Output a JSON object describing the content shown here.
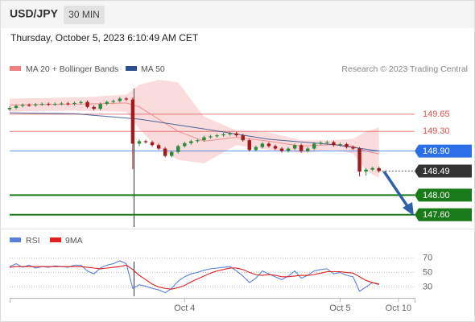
{
  "header": {
    "symbol": "USD/JPY",
    "interval": "30 MIN",
    "timestamp": "Thursday, October 5, 2023 6:10:49 AM CET"
  },
  "chart_data": [
    {
      "type": "candlestick",
      "source": "Research © 2023 Trading Central",
      "xlim": [
        0,
        125
      ],
      "ylim": [
        147.35,
        150.42
      ],
      "up_color": "#2e8b3a",
      "down_color": "#a01c1c",
      "x": [
        0,
        2,
        4,
        6,
        8,
        10,
        12,
        14,
        16,
        18,
        20,
        22,
        24,
        26,
        28,
        30,
        32,
        34,
        36,
        38,
        40,
        42,
        44,
        46,
        48,
        50,
        52,
        54,
        56,
        58,
        60,
        62,
        64,
        66,
        68,
        70,
        72,
        74,
        76,
        78,
        80,
        82,
        84,
        86,
        88,
        90,
        92,
        94,
        96,
        98,
        100,
        102,
        104,
        106,
        108,
        110,
        112,
        114
      ],
      "open": [
        149.75,
        149.78,
        149.82,
        149.84,
        149.83,
        149.85,
        149.86,
        149.85,
        149.86,
        149.87,
        149.86,
        149.88,
        149.9,
        149.8,
        149.76,
        149.86,
        149.9,
        149.92,
        149.97,
        149.95,
        149.05,
        149.1,
        149.08,
        149.02,
        148.95,
        148.8,
        148.88,
        149.0,
        149.06,
        149.1,
        149.12,
        149.18,
        149.2,
        149.22,
        149.24,
        149.26,
        149.22,
        149.12,
        148.92,
        148.98,
        149.05,
        149.0,
        148.95,
        148.9,
        148.95,
        149.02,
        148.9,
        148.95,
        149.05,
        149.07,
        149.08,
        149.02,
        149.04,
        148.98,
        148.95,
        148.48,
        148.52,
        148.55
      ],
      "high": [
        149.81,
        149.85,
        149.87,
        149.87,
        149.88,
        149.89,
        149.89,
        149.89,
        149.9,
        149.9,
        149.91,
        149.93,
        149.93,
        149.83,
        149.89,
        149.93,
        149.95,
        150.0,
        150.0,
        149.99,
        149.14,
        149.13,
        149.11,
        149.05,
        148.98,
        148.91,
        149.03,
        149.09,
        149.13,
        149.15,
        149.21,
        149.23,
        149.25,
        149.27,
        149.29,
        149.29,
        149.25,
        149.15,
        149.01,
        149.08,
        149.08,
        149.03,
        148.98,
        148.98,
        149.05,
        149.05,
        148.98,
        149.08,
        149.1,
        149.11,
        149.11,
        149.07,
        149.07,
        149.01,
        148.98,
        148.55,
        148.58,
        148.58
      ],
      "low": [
        149.72,
        149.75,
        149.79,
        149.8,
        149.8,
        149.82,
        149.82,
        149.82,
        149.83,
        149.83,
        149.83,
        149.85,
        149.77,
        149.73,
        149.73,
        149.83,
        149.87,
        149.89,
        149.92,
        148.53,
        149.0,
        149.05,
        148.99,
        148.92,
        148.77,
        148.77,
        148.85,
        148.97,
        149.03,
        149.07,
        149.09,
        149.15,
        149.17,
        149.19,
        149.21,
        149.19,
        149.09,
        148.89,
        148.89,
        148.95,
        148.97,
        148.92,
        148.87,
        148.87,
        148.92,
        148.87,
        148.87,
        148.92,
        149.02,
        149.04,
        148.99,
        148.99,
        148.95,
        148.92,
        148.38,
        148.4,
        148.49,
        148.46
      ],
      "close": [
        149.78,
        149.82,
        149.84,
        149.83,
        149.85,
        149.86,
        149.85,
        149.86,
        149.87,
        149.86,
        149.88,
        149.9,
        149.8,
        149.76,
        149.86,
        149.9,
        149.92,
        149.97,
        149.95,
        149.05,
        149.1,
        149.08,
        149.02,
        148.95,
        148.8,
        148.88,
        149.0,
        149.06,
        149.1,
        149.12,
        149.18,
        149.2,
        149.22,
        149.24,
        149.26,
        149.22,
        149.12,
        148.92,
        148.98,
        149.05,
        149.0,
        148.95,
        148.9,
        148.95,
        149.02,
        148.9,
        148.95,
        149.05,
        149.07,
        149.08,
        149.02,
        149.04,
        148.98,
        148.95,
        148.48,
        148.52,
        148.55,
        148.49
      ],
      "series": [
        {
          "name": "MA 20 + Bollinger Bands",
          "color": "#f08080",
          "x": [
            0,
            12,
            24,
            36,
            40,
            46,
            52,
            60,
            70,
            80,
            90,
            100,
            106,
            110,
            114
          ],
          "values": [
            149.84,
            149.85,
            149.86,
            149.88,
            149.8,
            149.55,
            149.3,
            149.1,
            149.18,
            149.1,
            149.0,
            149.03,
            149.0,
            148.9,
            148.84
          ],
          "upper": [
            149.97,
            149.98,
            150.0,
            150.05,
            150.25,
            150.35,
            150.3,
            149.6,
            149.32,
            149.28,
            149.12,
            149.12,
            149.15,
            149.3,
            149.38
          ],
          "lower": [
            149.7,
            149.72,
            149.72,
            149.7,
            149.35,
            148.95,
            148.72,
            148.65,
            149.02,
            148.92,
            148.86,
            148.92,
            148.85,
            148.5,
            148.35
          ]
        },
        {
          "name": "MA 50",
          "color": "#2f4f8f",
          "x": [
            0,
            20,
            40,
            60,
            80,
            100,
            114
          ],
          "values": [
            149.68,
            149.66,
            149.55,
            149.35,
            149.14,
            149.03,
            148.9
          ]
        }
      ],
      "levels": [
        {
          "value": 149.65,
          "label": "149.65",
          "color": "#e05050",
          "style": "line",
          "label_style": "text"
        },
        {
          "value": 149.3,
          "label": "149.30",
          "color": "#e05050",
          "style": "line",
          "label_style": "text"
        },
        {
          "value": 148.9,
          "label": "148.90",
          "color": "#2a6ee8",
          "style": "line",
          "label_style": "box"
        },
        {
          "value": 148.49,
          "label": "148.49",
          "color": "#333333",
          "style": "dotted",
          "label_style": "box"
        },
        {
          "value": 148,
          "label": "148.00",
          "color": "#1a7a1a",
          "style": "thick",
          "label_style": "box"
        },
        {
          "value": 147.6,
          "label": "147.60",
          "color": "#1a7a1a",
          "style": "thick",
          "label_style": "box"
        }
      ]
    },
    {
      "type": "line",
      "xlim": [
        0,
        125
      ],
      "ylim": [
        15,
        87
      ],
      "yticks": [
        30,
        50,
        70
      ],
      "xticks": [
        {
          "value": 54,
          "label": "Oct 4"
        },
        {
          "value": 102,
          "label": "Oct 5"
        },
        {
          "value": 120,
          "label": "Oct 10"
        }
      ],
      "x": [
        0,
        2,
        4,
        6,
        8,
        10,
        12,
        14,
        16,
        18,
        20,
        22,
        24,
        26,
        28,
        30,
        32,
        34,
        36,
        38,
        40,
        42,
        44,
        46,
        48,
        50,
        52,
        54,
        56,
        58,
        60,
        62,
        64,
        66,
        68,
        70,
        72,
        74,
        76,
        78,
        80,
        82,
        84,
        86,
        88,
        90,
        92,
        94,
        96,
        98,
        100,
        102,
        104,
        106,
        108,
        110,
        112,
        114
      ],
      "series": [
        {
          "name": "RSI",
          "color": "#5b7fde",
          "values": [
            58,
            62,
            57,
            60,
            56,
            58,
            57,
            59,
            58,
            57,
            60,
            60,
            52,
            48,
            56,
            60,
            62,
            66,
            62,
            28,
            33,
            31,
            28,
            26,
            22,
            28,
            38,
            44,
            48,
            50,
            53,
            55,
            56,
            57,
            58,
            52,
            45,
            36,
            42,
            52,
            48,
            44,
            40,
            45,
            52,
            42,
            46,
            52,
            54,
            55,
            48,
            50,
            46,
            44,
            24,
            30,
            36,
            33
          ]
        },
        {
          "name": "9MA",
          "color": "#e02020",
          "values": [
            57,
            58,
            58,
            58,
            58,
            58,
            58,
            58,
            58,
            58,
            58,
            58,
            57,
            56,
            55,
            56,
            57,
            58,
            60,
            54,
            46,
            40,
            34,
            30,
            28,
            27,
            29,
            32,
            37,
            41,
            45,
            49,
            52,
            54,
            56,
            56,
            54,
            50,
            47,
            46,
            47,
            46,
            44,
            44,
            45,
            46,
            46,
            47,
            49,
            51,
            51,
            51,
            50,
            49,
            44,
            39,
            36,
            34
          ]
        }
      ]
    }
  ]
}
